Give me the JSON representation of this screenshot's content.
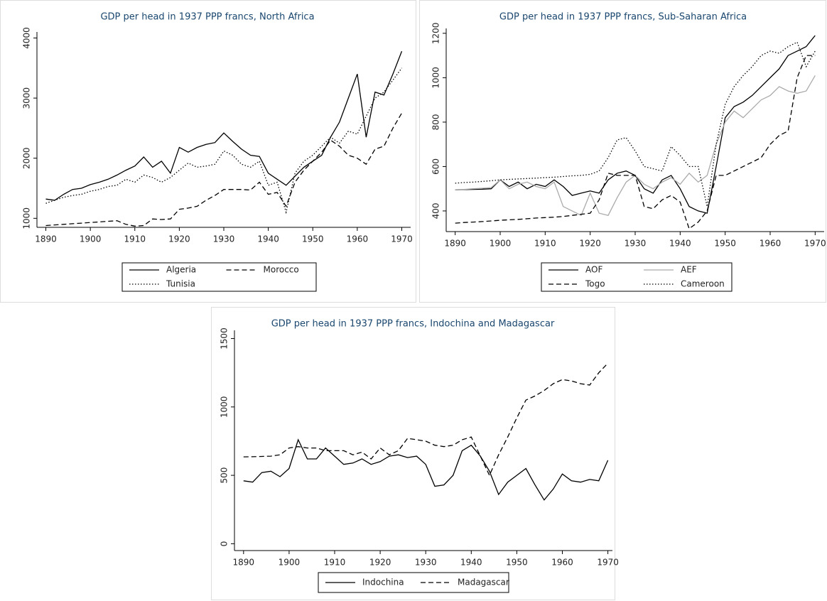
{
  "chart_data": [
    {
      "type": "line",
      "title": "GDP per head in 1937 PPP francs, North Africa",
      "x": [
        1890,
        1892,
        1894,
        1896,
        1898,
        1900,
        1902,
        1904,
        1906,
        1908,
        1910,
        1912,
        1914,
        1916,
        1918,
        1920,
        1922,
        1924,
        1926,
        1928,
        1930,
        1932,
        1934,
        1936,
        1938,
        1940,
        1942,
        1944,
        1946,
        1948,
        1950,
        1952,
        1954,
        1956,
        1958,
        1960,
        1962,
        1964,
        1966,
        1968,
        1970
      ],
      "series": [
        {
          "name": "Algeria",
          "color": "#000000",
          "style": "solid",
          "values": [
            1320,
            1300,
            1400,
            1480,
            1500,
            1560,
            1600,
            1650,
            1720,
            1800,
            1870,
            2020,
            1850,
            1950,
            1750,
            2180,
            2100,
            2180,
            2230,
            2260,
            2420,
            2280,
            2150,
            2050,
            2030,
            1750,
            1650,
            1550,
            1700,
            1850,
            1950,
            2050,
            2350,
            2600,
            3000,
            3400,
            2350,
            3100,
            3050,
            3400,
            3780
          ]
        },
        {
          "name": "Morocco",
          "color": "#000000",
          "style": "dashed",
          "values": [
            880,
            890,
            900,
            910,
            920,
            930,
            940,
            950,
            960,
            900,
            870,
            880,
            990,
            980,
            990,
            1150,
            1170,
            1200,
            1300,
            1380,
            1480,
            1480,
            1480,
            1470,
            1600,
            1400,
            1430,
            1200,
            1600,
            1800,
            1950,
            2100,
            2300,
            2200,
            2050,
            2000,
            1900,
            2150,
            2200,
            2500,
            2750
          ]
        },
        {
          "name": "Tunisia",
          "color": "#000000",
          "style": "dotted",
          "values": [
            1250,
            1300,
            1350,
            1380,
            1400,
            1450,
            1480,
            1530,
            1550,
            1650,
            1600,
            1720,
            1680,
            1600,
            1680,
            1800,
            1920,
            1850,
            1870,
            1900,
            2120,
            2050,
            1900,
            1850,
            1950,
            1550,
            1600,
            1100,
            1750,
            1950,
            2050,
            2200,
            2350,
            2250,
            2450,
            2400,
            2700,
            3000,
            3100,
            3300,
            3500
          ]
        }
      ],
      "xlim": [
        1888,
        1972
      ],
      "xticks": [
        1890,
        1900,
        1910,
        1920,
        1930,
        1940,
        1950,
        1960,
        1970
      ],
      "ylim": [
        850,
        4100
      ],
      "yticks": [
        1000,
        2000,
        3000,
        4000
      ],
      "grid": false
    },
    {
      "type": "line",
      "title": "GDP per head in 1937 PPP francs, Sub-Saharan Africa",
      "x": [
        1890,
        1892,
        1894,
        1896,
        1898,
        1900,
        1902,
        1904,
        1906,
        1908,
        1910,
        1912,
        1914,
        1916,
        1918,
        1920,
        1922,
        1924,
        1926,
        1928,
        1930,
        1932,
        1934,
        1936,
        1938,
        1940,
        1942,
        1944,
        1946,
        1948,
        1950,
        1952,
        1954,
        1956,
        1958,
        1960,
        1962,
        1964,
        1966,
        1968,
        1970
      ],
      "series": [
        {
          "name": "AOF",
          "color": "#000000",
          "style": "solid",
          "values": [
            495,
            496,
            497,
            498,
            500,
            540,
            510,
            530,
            500,
            520,
            510,
            540,
            510,
            470,
            480,
            490,
            480,
            540,
            570,
            580,
            560,
            500,
            480,
            540,
            560,
            500,
            420,
            400,
            390,
            600,
            820,
            870,
            890,
            920,
            960,
            1000,
            1040,
            1100,
            1120,
            1140,
            1190
          ]
        },
        {
          "name": "AEF",
          "color": "#aaaaaa",
          "style": "solid",
          "values": [
            495,
            497,
            500,
            502,
            505,
            540,
            500,
            520,
            530,
            510,
            500,
            530,
            420,
            400,
            380,
            480,
            390,
            380,
            460,
            530,
            560,
            520,
            500,
            530,
            550,
            520,
            570,
            530,
            560,
            700,
            800,
            850,
            820,
            860,
            900,
            920,
            960,
            940,
            930,
            940,
            1010
          ]
        },
        {
          "name": "Togo",
          "color": "#000000",
          "style": "dashed",
          "values": [
            345,
            348,
            350,
            352,
            355,
            358,
            360,
            362,
            365,
            368,
            370,
            372,
            375,
            380,
            385,
            390,
            450,
            570,
            560,
            560,
            560,
            420,
            410,
            450,
            470,
            440,
            320,
            350,
            400,
            560,
            560,
            580,
            600,
            620,
            640,
            700,
            740,
            760,
            1000,
            1100,
            1100
          ]
        },
        {
          "name": "Cameroon",
          "color": "#000000",
          "style": "dotted",
          "values": [
            525,
            528,
            530,
            533,
            536,
            540,
            542,
            544,
            546,
            548,
            550,
            552,
            555,
            558,
            560,
            565,
            580,
            640,
            720,
            730,
            670,
            600,
            590,
            580,
            690,
            650,
            600,
            600,
            420,
            700,
            880,
            960,
            1010,
            1050,
            1100,
            1120,
            1110,
            1140,
            1160,
            1050,
            1120
          ]
        }
      ],
      "xlim": [
        1888,
        1972
      ],
      "xticks": [
        1890,
        1900,
        1910,
        1920,
        1930,
        1940,
        1950,
        1960,
        1970
      ],
      "ylim": [
        307,
        1222
      ],
      "yticks": [
        400,
        600,
        800,
        1000,
        1200
      ],
      "grid": false
    },
    {
      "type": "line",
      "title": "GDP per head in 1937 PPP francs, Indochina and Madagascar",
      "x": [
        1890,
        1892,
        1894,
        1896,
        1898,
        1900,
        1902,
        1904,
        1906,
        1908,
        1910,
        1912,
        1914,
        1916,
        1918,
        1920,
        1922,
        1924,
        1926,
        1928,
        1930,
        1932,
        1934,
        1936,
        1938,
        1940,
        1942,
        1944,
        1946,
        1948,
        1950,
        1952,
        1954,
        1956,
        1958,
        1960,
        1962,
        1964,
        1966,
        1968,
        1970
      ],
      "series": [
        {
          "name": "Indochina",
          "color": "#000000",
          "style": "solid",
          "values": [
            460,
            450,
            520,
            530,
            490,
            550,
            760,
            620,
            620,
            700,
            640,
            580,
            590,
            620,
            580,
            600,
            640,
            650,
            630,
            640,
            580,
            420,
            430,
            500,
            680,
            720,
            640,
            530,
            360,
            450,
            500,
            550,
            430,
            320,
            400,
            510,
            460,
            450,
            470,
            460,
            610
          ]
        },
        {
          "name": "Madagascar",
          "color": "#000000",
          "style": "dashed",
          "values": [
            635,
            636,
            638,
            640,
            650,
            700,
            710,
            700,
            700,
            680,
            680,
            680,
            650,
            670,
            620,
            700,
            650,
            680,
            770,
            760,
            750,
            720,
            710,
            720,
            760,
            780,
            640,
            500,
            650,
            780,
            920,
            1050,
            1080,
            1120,
            1170,
            1200,
            1190,
            1170,
            1160,
            1250,
            1320
          ]
        }
      ],
      "xlim": [
        1888,
        1971
      ],
      "xticks": [
        1890,
        1900,
        1910,
        1920,
        1930,
        1940,
        1950,
        1960,
        1970
      ],
      "ylim": [
        -50,
        1560
      ],
      "yticks": [
        0,
        500,
        1000,
        1500
      ],
      "grid": false
    }
  ]
}
